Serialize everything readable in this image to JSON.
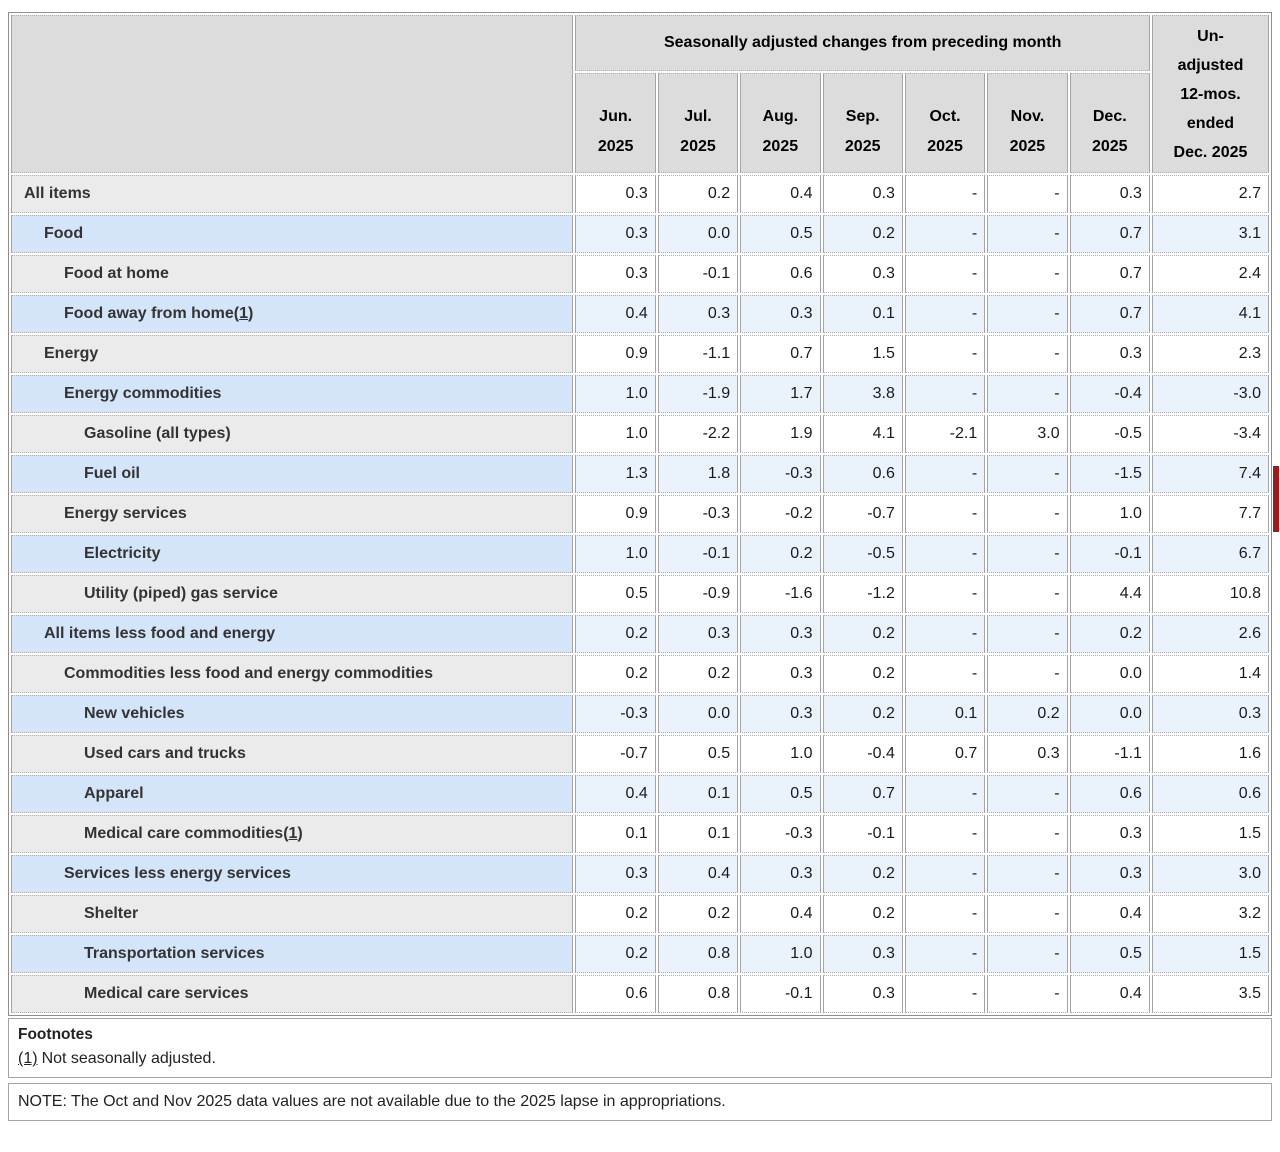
{
  "colors": {
    "header_bg": "#dcdcdc",
    "gray_row_label": "#ebebeb",
    "gray_row_data": "#ffffff",
    "blue_row_label": "#d4e4f9",
    "blue_row_data": "#eaf2fc",
    "border": "#a4a4a4",
    "edge_marker": "#9a1c1c"
  },
  "table": {
    "header": {
      "group_label": "Seasonally adjusted changes from preceding month",
      "months": [
        {
          "month": "Jun.",
          "year": "2025"
        },
        {
          "month": "Jul.",
          "year": "2025"
        },
        {
          "month": "Aug.",
          "year": "2025"
        },
        {
          "month": "Sep.",
          "year": "2025"
        },
        {
          "month": "Oct.",
          "year": "2025"
        },
        {
          "month": "Nov.",
          "year": "2025"
        },
        {
          "month": "Dec.",
          "year": "2025"
        }
      ],
      "unadjusted_lines": [
        "Un-",
        "adjusted",
        "12-mos.",
        "ended",
        "Dec. 2025"
      ]
    },
    "rows": [
      {
        "label": "All items",
        "indent": 0,
        "footnote": null,
        "values": [
          "0.3",
          "0.2",
          "0.4",
          "0.3",
          "-",
          "-",
          "0.3",
          "2.7"
        ]
      },
      {
        "label": "Food",
        "indent": 1,
        "footnote": null,
        "values": [
          "0.3",
          "0.0",
          "0.5",
          "0.2",
          "-",
          "-",
          "0.7",
          "3.1"
        ]
      },
      {
        "label": "Food at home",
        "indent": 2,
        "footnote": null,
        "values": [
          "0.3",
          "-0.1",
          "0.6",
          "0.3",
          "-",
          "-",
          "0.7",
          "2.4"
        ]
      },
      {
        "label": "Food away from home",
        "indent": 2,
        "footnote": "1",
        "values": [
          "0.4",
          "0.3",
          "0.3",
          "0.1",
          "-",
          "-",
          "0.7",
          "4.1"
        ]
      },
      {
        "label": "Energy",
        "indent": 1,
        "footnote": null,
        "values": [
          "0.9",
          "-1.1",
          "0.7",
          "1.5",
          "-",
          "-",
          "0.3",
          "2.3"
        ]
      },
      {
        "label": "Energy commodities",
        "indent": 2,
        "footnote": null,
        "values": [
          "1.0",
          "-1.9",
          "1.7",
          "3.8",
          "-",
          "-",
          "-0.4",
          "-3.0"
        ]
      },
      {
        "label": "Gasoline (all types)",
        "indent": 3,
        "footnote": null,
        "values": [
          "1.0",
          "-2.2",
          "1.9",
          "4.1",
          "-2.1",
          "3.0",
          "-0.5",
          "-3.4"
        ]
      },
      {
        "label": "Fuel oil",
        "indent": 3,
        "footnote": null,
        "values": [
          "1.3",
          "1.8",
          "-0.3",
          "0.6",
          "-",
          "-",
          "-1.5",
          "7.4"
        ]
      },
      {
        "label": "Energy services",
        "indent": 2,
        "footnote": null,
        "values": [
          "0.9",
          "-0.3",
          "-0.2",
          "-0.7",
          "-",
          "-",
          "1.0",
          "7.7"
        ]
      },
      {
        "label": "Electricity",
        "indent": 3,
        "footnote": null,
        "values": [
          "1.0",
          "-0.1",
          "0.2",
          "-0.5",
          "-",
          "-",
          "-0.1",
          "6.7"
        ]
      },
      {
        "label": "Utility (piped) gas service",
        "indent": 3,
        "footnote": null,
        "values": [
          "0.5",
          "-0.9",
          "-1.6",
          "-1.2",
          "-",
          "-",
          "4.4",
          "10.8"
        ]
      },
      {
        "label": "All items less food and energy",
        "indent": 1,
        "footnote": null,
        "values": [
          "0.2",
          "0.3",
          "0.3",
          "0.2",
          "-",
          "-",
          "0.2",
          "2.6"
        ]
      },
      {
        "label": "Commodities less food and energy commodities",
        "indent": 2,
        "footnote": null,
        "values": [
          "0.2",
          "0.2",
          "0.3",
          "0.2",
          "-",
          "-",
          "0.0",
          "1.4"
        ]
      },
      {
        "label": "New vehicles",
        "indent": 3,
        "footnote": null,
        "values": [
          "-0.3",
          "0.0",
          "0.3",
          "0.2",
          "0.1",
          "0.2",
          "0.0",
          "0.3"
        ]
      },
      {
        "label": "Used cars and trucks",
        "indent": 3,
        "footnote": null,
        "values": [
          "-0.7",
          "0.5",
          "1.0",
          "-0.4",
          "0.7",
          "0.3",
          "-1.1",
          "1.6"
        ]
      },
      {
        "label": "Apparel",
        "indent": 3,
        "footnote": null,
        "values": [
          "0.4",
          "0.1",
          "0.5",
          "0.7",
          "-",
          "-",
          "0.6",
          "0.6"
        ]
      },
      {
        "label": "Medical care commodities",
        "indent": 3,
        "footnote": "1",
        "values": [
          "0.1",
          "0.1",
          "-0.3",
          "-0.1",
          "-",
          "-",
          "0.3",
          "1.5"
        ]
      },
      {
        "label": "Services less energy services",
        "indent": 2,
        "footnote": null,
        "values": [
          "0.3",
          "0.4",
          "0.3",
          "0.2",
          "-",
          "-",
          "0.3",
          "3.0"
        ]
      },
      {
        "label": "Shelter",
        "indent": 3,
        "footnote": null,
        "values": [
          "0.2",
          "0.2",
          "0.4",
          "0.2",
          "-",
          "-",
          "0.4",
          "3.2"
        ]
      },
      {
        "label": "Transportation services",
        "indent": 3,
        "footnote": null,
        "values": [
          "0.2",
          "0.8",
          "1.0",
          "0.3",
          "-",
          "-",
          "0.5",
          "1.5"
        ]
      },
      {
        "label": "Medical care services",
        "indent": 3,
        "footnote": null,
        "values": [
          "0.6",
          "0.8",
          "-0.1",
          "0.3",
          "-",
          "-",
          "0.4",
          "3.5"
        ]
      }
    ]
  },
  "footnotes": {
    "title": "Footnotes",
    "items": [
      {
        "ref": "(1)",
        "text": "Not seasonally adjusted."
      }
    ]
  },
  "note": "NOTE: The Oct and Nov 2025 data values are not available due to the 2025 lapse in appropriations."
}
